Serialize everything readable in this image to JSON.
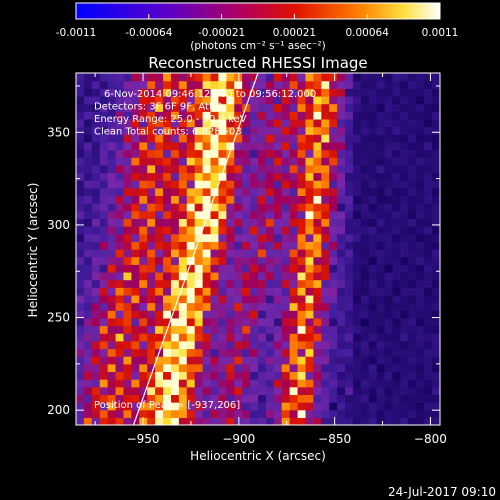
{
  "colorbar": {
    "ticks": [
      "-0.0011",
      "-0.00064",
      "-0.00021",
      "0.00021",
      "0.00064",
      "0.0011"
    ],
    "unit_label": "(photons cm⁻² s⁻¹ asec⁻²)",
    "range": [
      -0.0011,
      0.0011
    ]
  },
  "chart_data": {
    "type": "heatmap",
    "title": "Reconstructed RHESSI Image",
    "xlabel": "Heliocentric X (arcsec)",
    "ylabel": "Heliocentric Y (arcsec)",
    "x_ticks": [
      -950,
      -900,
      -850,
      -800
    ],
    "y_ticks": [
      200,
      250,
      300,
      350
    ],
    "xlim": [
      -985,
      -795
    ],
    "ylim": [
      192,
      382
    ],
    "annotations": [
      "6-Nov-2014 09:46:12.000 to 09:56:12.000",
      "Detectors: 3F 6F 9F, Att 0",
      "Energy Range: 25.0 - 50.0 keV",
      "Clean     Total counts: 6.82E+03"
    ],
    "peak_label": "Position of Peak = [-937,206]",
    "peak_position": [
      -937,
      206
    ],
    "limb": [
      [
        -955,
        192
      ],
      [
        -934,
        250
      ],
      [
        -913,
        300
      ],
      [
        -890,
        382
      ]
    ],
    "bright_band_ridges": [
      [
        [
          -938,
          192
        ],
        [
          -929,
          250
        ],
        [
          -918,
          300
        ],
        [
          -907,
          382
        ]
      ],
      [
        [
          -871,
          192
        ],
        [
          -866,
          250
        ],
        [
          -861,
          300
        ],
        [
          -856,
          382
        ]
      ]
    ],
    "colormap": "blue-purple-red-yellow-white"
  },
  "footer": {
    "date": "24-Jul-2017 09:10"
  }
}
